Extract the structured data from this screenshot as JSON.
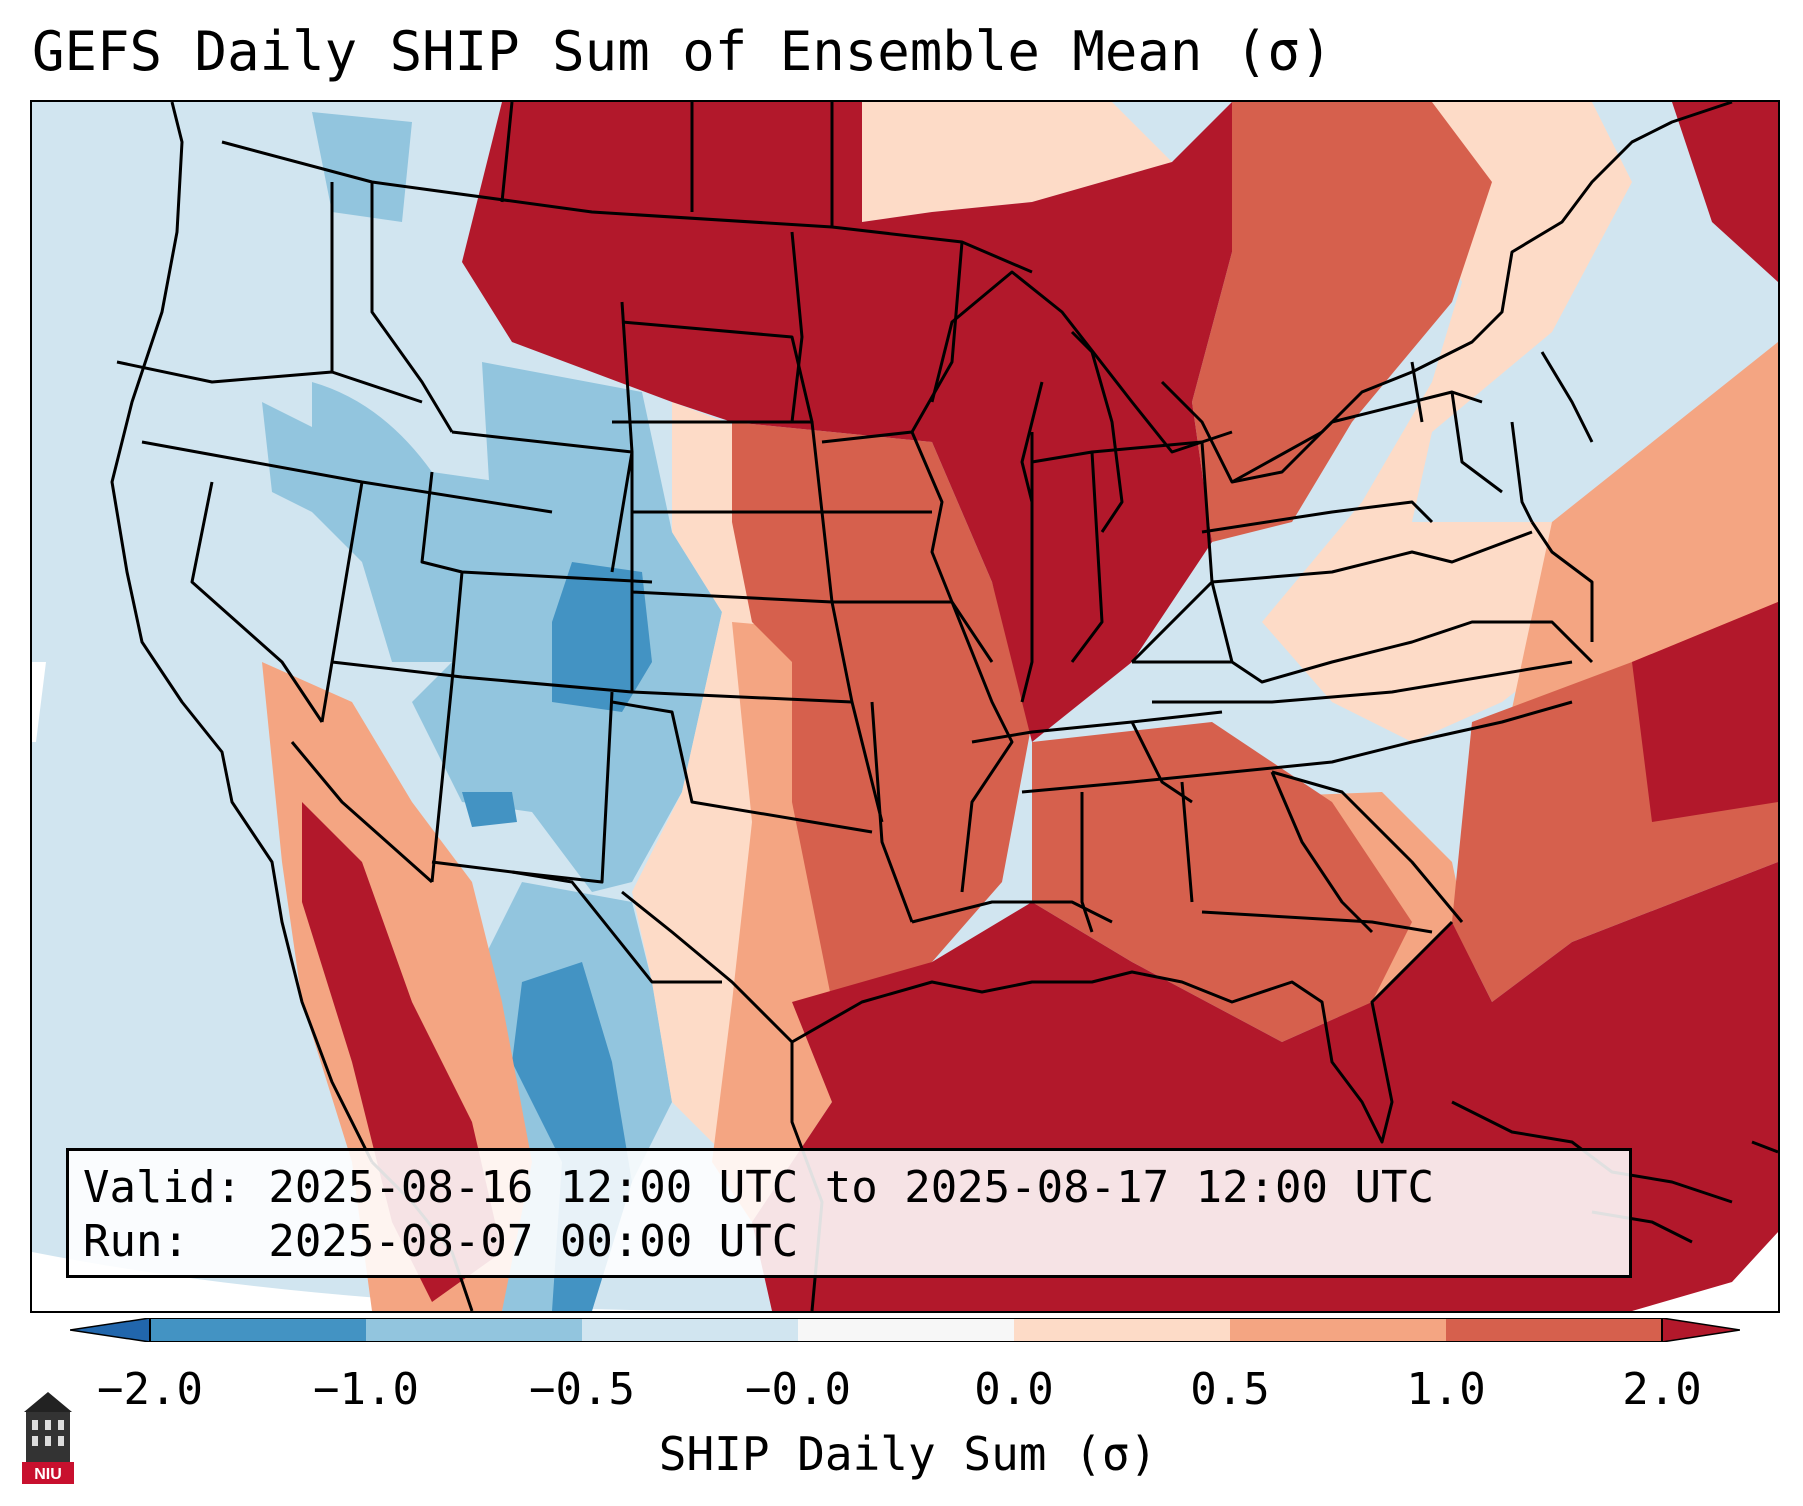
{
  "title": "GEFS Daily SHIP Sum of Ensemble Mean (σ)",
  "info": {
    "valid_line": "Valid: 2025-08-16 12:00 UTC to 2025-08-17 12:00 UTC",
    "run_line": "Run:   2025-08-07 00:00 UTC"
  },
  "colorbar": {
    "label": "SHIP Daily Sum (σ)",
    "ticks": [
      "−2.0",
      "−1.0",
      "−0.5",
      "−0.0",
      "0.0",
      "0.5",
      "1.0",
      "2.0"
    ],
    "colors": {
      "under": "#2166ac",
      "m2_m1": "#4393c3",
      "m1_m05": "#92c5de",
      "m05_m0": "#d1e5f0",
      "m0_0": "#f7f7f7",
      "p0_05": "#fddbc7",
      "p05_1": "#f4a582",
      "p1_2": "#d6604d",
      "over": "#b2182b"
    }
  },
  "logo": {
    "text": "NIU",
    "icon": "niu-tower-icon"
  },
  "map": {
    "icon": "conus-state-borders-icon"
  }
}
